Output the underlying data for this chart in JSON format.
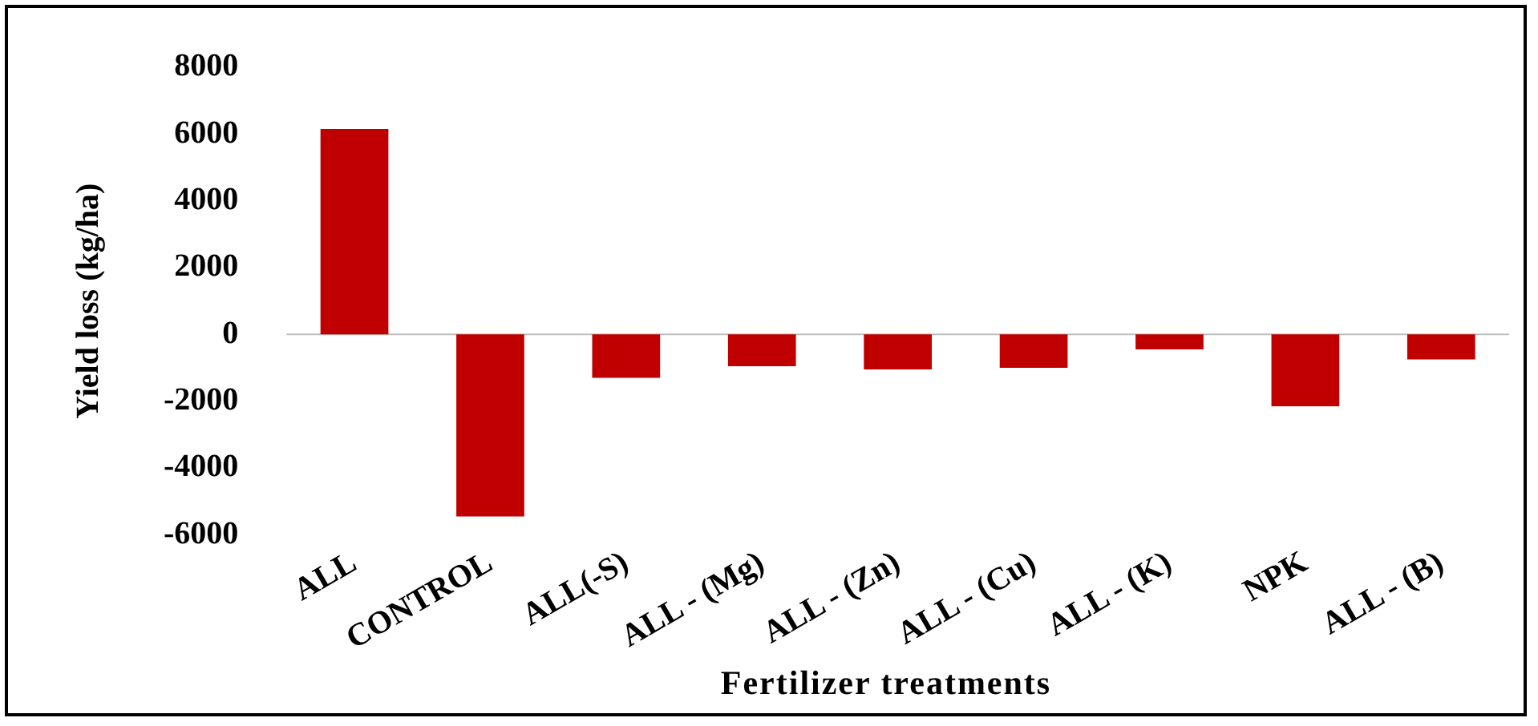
{
  "chart_data": {
    "type": "bar",
    "xlabel": "Fertilizer treatments",
    "ylabel": "Yield loss (kg/ha)",
    "categories": [
      "ALL",
      "CONTROL",
      "ALL(-S)",
      "ALL - (Mg)",
      "ALL - (Zn)",
      "ALL - (Cu)",
      "ALL - (K)",
      "NPK",
      "ALL - (B)"
    ],
    "values": [
      6150,
      -5450,
      -1300,
      -950,
      -1050,
      -1000,
      -450,
      -2150,
      -750
    ],
    "color": "#c00000",
    "ylim": [
      -6000,
      8000
    ],
    "yticks": [
      -6000,
      -4000,
      -2000,
      0,
      2000,
      4000,
      6000,
      8000
    ],
    "grid": false,
    "legend": false,
    "ref_lines": [
      {
        "axis": "y",
        "value": 0,
        "color": "#bfbfbf"
      }
    ]
  }
}
